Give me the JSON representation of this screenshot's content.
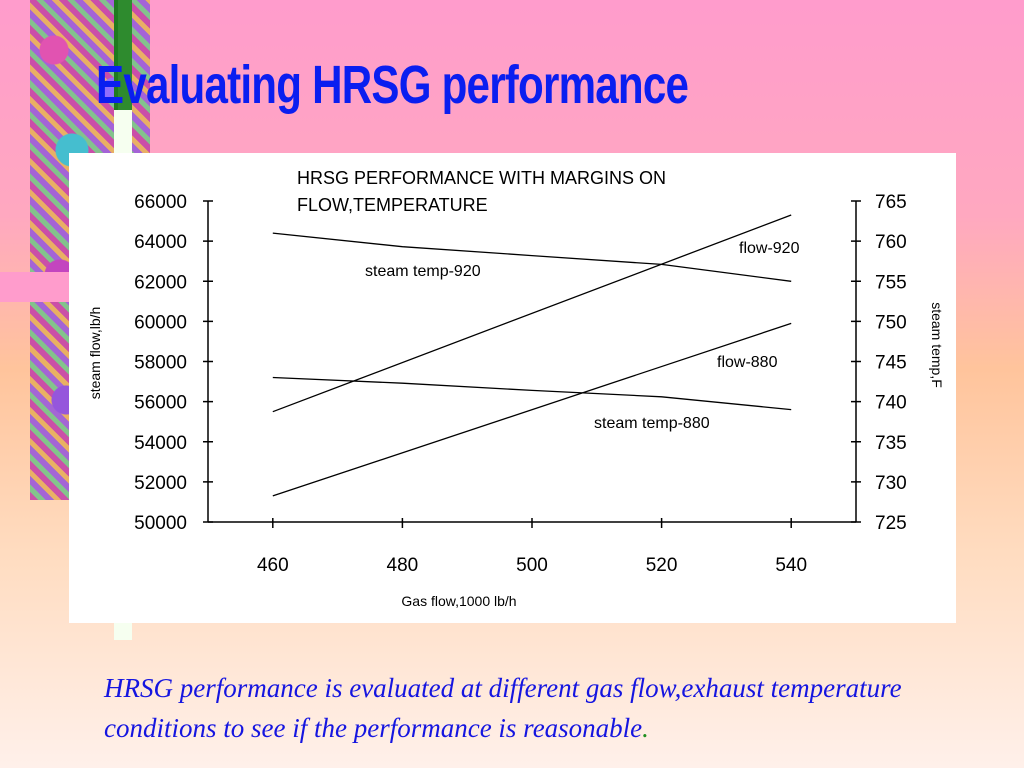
{
  "slide": {
    "title": "Evaluating HRSG performance",
    "caption": "HRSG performance is evaluated at different gas flow,exhaust temperature conditions to see if the performance is reasonable",
    "caption_end": "."
  },
  "colors": {
    "title": "#0a1ef0",
    "caption": "#1515e0",
    "caption_dot": "#1f8f1f",
    "lines": "#000000"
  },
  "chart_data": {
    "type": "line",
    "title_lines": [
      "HRSG PERFORMANCE  WITH MARGINS ON",
      "FLOW,TEMPERATURE"
    ],
    "xlabel": "Gas flow,1000 lb/h",
    "ylabel_left": "steam flow,lb/h",
    "ylabel_right": "steam temp,F",
    "xlim": [
      450,
      550
    ],
    "ylim_left": [
      50000,
      66000
    ],
    "ylim_right": [
      725,
      765
    ],
    "x_ticks": [
      460,
      480,
      500,
      520,
      540
    ],
    "y_ticks_left": [
      50000,
      52000,
      54000,
      56000,
      58000,
      60000,
      62000,
      64000,
      66000
    ],
    "y_ticks_right": [
      725,
      730,
      735,
      740,
      745,
      750,
      755,
      760,
      765
    ],
    "grid": false,
    "series": [
      {
        "name": "flow-920",
        "axis": "left",
        "x": [
          460,
          540
        ],
        "y": [
          55500,
          65300
        ]
      },
      {
        "name": "flow-880",
        "axis": "left",
        "x": [
          460,
          540
        ],
        "y": [
          51300,
          59900
        ]
      },
      {
        "name": "steam temp-920",
        "axis": "right",
        "x": [
          460,
          480,
          500,
          520,
          540
        ],
        "y": [
          761,
          759.3,
          758.2,
          757.1,
          755
        ]
      },
      {
        "name": "steam temp-880",
        "axis": "right",
        "x": [
          460,
          480,
          500,
          520,
          540
        ],
        "y": [
          743,
          742.3,
          741.4,
          740.6,
          739
        ]
      }
    ]
  }
}
